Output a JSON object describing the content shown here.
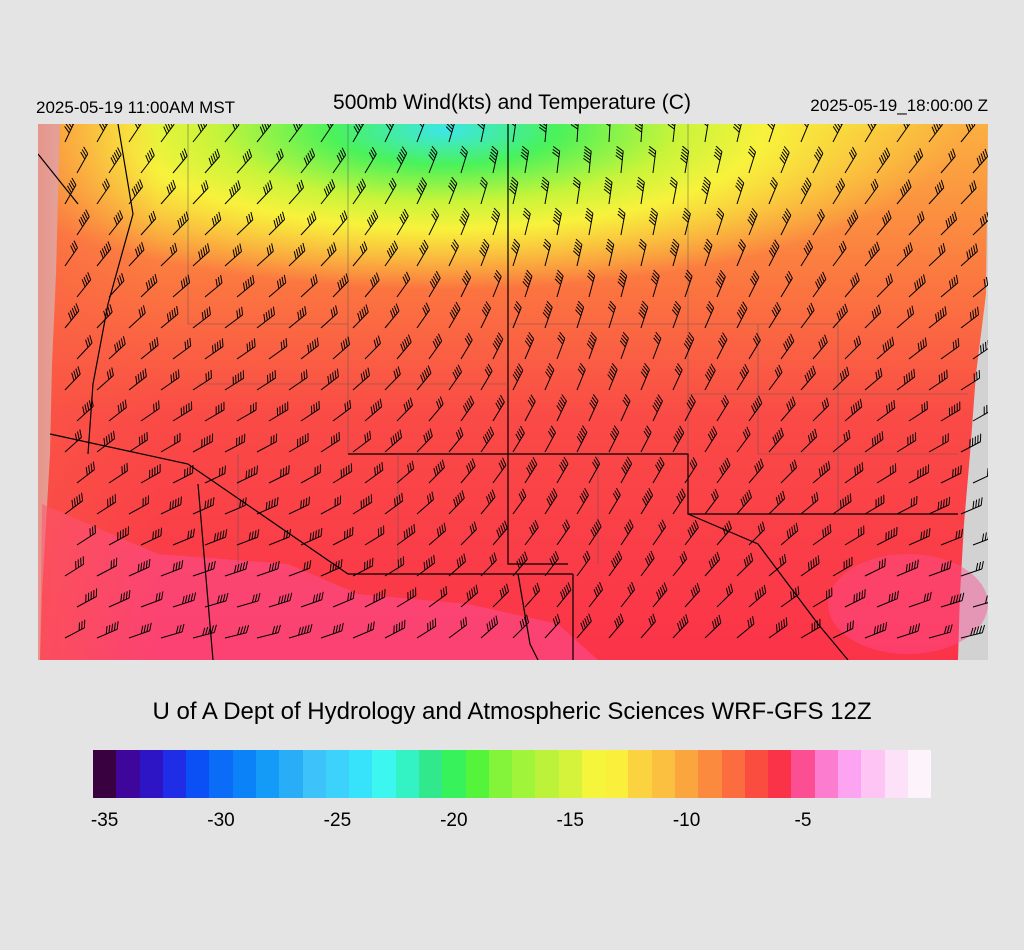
{
  "header": {
    "local_time": "2025-05-19 11:00AM MST",
    "title": "500mb Wind(kts) and Temperature (C)",
    "utc_time": "2025-05-19_18:00:00 Z"
  },
  "credit": "U of A Dept of Hydrology and Atmospheric Sciences WRF-GFS 12Z",
  "colorbar": {
    "colors": [
      "#3a0140",
      "#3f069c",
      "#2d14c4",
      "#1f2ee6",
      "#0a50f5",
      "#0a6cf7",
      "#0b82f7",
      "#149af7",
      "#2aadf7",
      "#3dc3f9",
      "#3cd2fb",
      "#36e3fb",
      "#3cf7f0",
      "#33f3c4",
      "#32e88d",
      "#37f25a",
      "#53f43a",
      "#83f43a",
      "#a0f43a",
      "#bdf23a",
      "#d6f33b",
      "#f5f53b",
      "#faf03c",
      "#fbd23f",
      "#fbc03f",
      "#fba53f",
      "#fb8a3f",
      "#fb6c3f",
      "#fa4d40",
      "#fb3349",
      "#fc4e93",
      "#fc7cd0",
      "#fca4f2",
      "#fdc4f4",
      "#fde1f8",
      "#fdf3fb"
    ],
    "ticks": [
      {
        "label": "-35",
        "index": 0.5
      },
      {
        "label": "-30",
        "index": 5.5
      },
      {
        "label": "-25",
        "index": 10.5
      },
      {
        "label": "-20",
        "index": 15.5
      },
      {
        "label": "-15",
        "index": 20.5
      },
      {
        "label": "-10",
        "index": 25.5
      },
      {
        "label": "-5",
        "index": 30.5
      }
    ]
  }
}
